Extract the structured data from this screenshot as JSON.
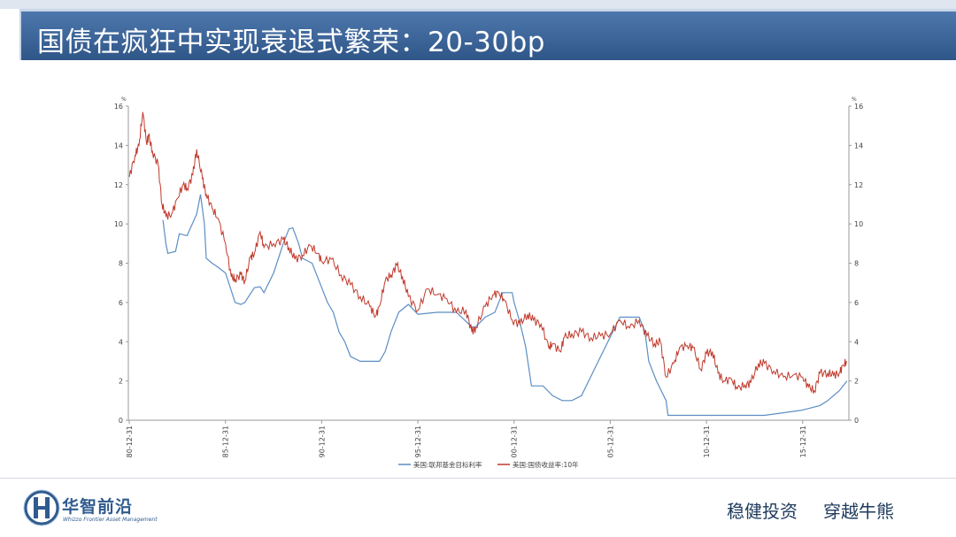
{
  "header": {
    "title": "国债在疯狂中实现衰退式繁荣：20-30bp"
  },
  "brand": {
    "name": "华智前沿",
    "subtitle": "Whizzo Frontier Asset Management",
    "logo_icon": "h-circle-logo-icon",
    "color": "#2f5b8f"
  },
  "footer": {
    "slogan_1": "稳健投资",
    "slogan_2": "穿越牛熊"
  },
  "chart_data": {
    "type": "line",
    "title": "",
    "xlabel": "",
    "ylabel": "",
    "unit_left": "%",
    "unit_right": "%",
    "ylim": [
      0,
      16
    ],
    "xlim": [
      1980.95,
      2018.4
    ],
    "y_ticks": [
      0,
      2,
      4,
      6,
      8,
      10,
      12,
      14,
      16
    ],
    "x_ticks": [
      {
        "label": "80-12-31",
        "x": 1980.997
      },
      {
        "label": "85-12-31",
        "x": 1985.997
      },
      {
        "label": "90-12-31",
        "x": 1990.997
      },
      {
        "label": "95-12-31",
        "x": 1995.997
      },
      {
        "label": "00-12-31",
        "x": 2000.997
      },
      {
        "label": "05-12-31",
        "x": 2005.997
      },
      {
        "label": "10-12-31",
        "x": 2010.997
      },
      {
        "label": "15-12-31",
        "x": 2015.997
      }
    ],
    "grid": false,
    "legend_position": "bottom",
    "series": [
      {
        "name": "美国:联邦基金目标利率",
        "color": "#5a8ec4",
        "x": [
          1982.75,
          1982.9,
          1983.0,
          1983.4,
          1983.6,
          1984.0,
          1984.5,
          1984.7,
          1984.9,
          1985.0,
          1985.3,
          1985.6,
          1986.0,
          1986.5,
          1986.8,
          1987.0,
          1987.5,
          1987.8,
          1988.0,
          1988.5,
          1989.0,
          1989.3,
          1989.5,
          1989.8,
          1990.0,
          1990.5,
          1990.9,
          1991.3,
          1991.6,
          1991.9,
          1992.2,
          1992.5,
          1993.0,
          1993.5,
          1994.0,
          1994.3,
          1994.6,
          1995.0,
          1995.5,
          1996.0,
          1997.0,
          1998.0,
          1998.8,
          1999.0,
          1999.5,
          2000.0,
          2000.4,
          2000.9,
          2001.0,
          2001.3,
          2001.6,
          2001.9,
          2002.5,
          2003.0,
          2003.5,
          2004.0,
          2004.5,
          2005.0,
          2005.5,
          2006.0,
          2006.5,
          2007.0,
          2007.5,
          2007.8,
          2008.0,
          2008.4,
          2008.9,
          2009.0,
          2010.0,
          2012.0,
          2014.0,
          2015.9,
          2016.9,
          2017.3,
          2017.9,
          2018.3
        ],
        "y": [
          10.2,
          9.0,
          8.5,
          8.6,
          9.5,
          9.4,
          10.5,
          11.5,
          10.0,
          8.25,
          8.0,
          7.8,
          7.5,
          6.0,
          5.9,
          6.0,
          6.75,
          6.8,
          6.5,
          7.5,
          9.0,
          9.75,
          9.8,
          9.0,
          8.25,
          8.0,
          7.0,
          6.0,
          5.5,
          4.5,
          4.0,
          3.25,
          3.0,
          3.0,
          3.0,
          3.5,
          4.5,
          5.5,
          5.9,
          5.4,
          5.5,
          5.5,
          4.75,
          4.75,
          5.25,
          5.5,
          6.5,
          6.5,
          6.0,
          5.0,
          3.75,
          1.75,
          1.75,
          1.25,
          1.0,
          1.0,
          1.25,
          2.25,
          3.25,
          4.25,
          5.25,
          5.25,
          5.25,
          4.5,
          3.0,
          2.0,
          1.0,
          0.25,
          0.25,
          0.25,
          0.25,
          0.5,
          0.75,
          1.0,
          1.5,
          2.0
        ]
      },
      {
        "name": "美国:国债收益率:10年",
        "color": "#c0392b",
        "x": [
          1981.0,
          1981.3,
          1981.5,
          1981.7,
          1981.9,
          1982.0,
          1982.2,
          1982.5,
          1982.7,
          1982.9,
          1983.2,
          1983.5,
          1983.8,
          1984.0,
          1984.3,
          1984.5,
          1984.8,
          1985.0,
          1985.3,
          1985.6,
          1986.0,
          1986.3,
          1986.5,
          1986.8,
          1987.0,
          1987.3,
          1987.5,
          1987.8,
          1988.0,
          1988.5,
          1989.0,
          1989.3,
          1989.6,
          1990.0,
          1990.4,
          1990.8,
          1991.0,
          1991.5,
          1992.0,
          1992.5,
          1993.0,
          1993.5,
          1993.8,
          1994.0,
          1994.3,
          1994.6,
          1994.9,
          1995.2,
          1995.5,
          1996.0,
          1996.5,
          1997.0,
          1997.5,
          1998.0,
          1998.5,
          1998.8,
          1999.0,
          1999.5,
          1999.9,
          2000.2,
          2000.5,
          2000.9,
          2001.3,
          2001.7,
          2002.0,
          2002.4,
          2002.8,
          2003.0,
          2003.4,
          2003.6,
          2004.0,
          2004.5,
          2005.0,
          2005.5,
          2006.0,
          2006.5,
          2007.0,
          2007.5,
          2007.9,
          2008.3,
          2008.6,
          2008.9,
          2009.3,
          2009.6,
          2010.0,
          2010.3,
          2010.7,
          2011.0,
          2011.3,
          2011.6,
          2011.9,
          2012.3,
          2012.6,
          2013.0,
          2013.3,
          2013.7,
          2014.0,
          2014.5,
          2015.0,
          2015.5,
          2016.0,
          2016.3,
          2016.6,
          2016.9,
          2017.3,
          2017.6,
          2017.9,
          2018.1,
          2018.3
        ],
        "y": [
          12.4,
          13.5,
          14.0,
          15.7,
          14.1,
          14.5,
          13.7,
          13.0,
          11.0,
          10.4,
          10.5,
          11.3,
          12.0,
          11.8,
          12.5,
          13.8,
          12.3,
          11.5,
          10.8,
          10.3,
          9.0,
          7.3,
          7.2,
          7.4,
          7.1,
          8.3,
          8.5,
          9.6,
          8.8,
          9.0,
          9.2,
          8.8,
          8.2,
          8.4,
          8.9,
          8.5,
          8.1,
          8.2,
          7.4,
          6.9,
          6.3,
          5.8,
          5.3,
          5.8,
          7.1,
          7.4,
          7.9,
          7.3,
          6.3,
          5.6,
          6.7,
          6.4,
          6.2,
          5.5,
          5.6,
          4.5,
          4.7,
          5.8,
          6.4,
          6.5,
          6.1,
          5.1,
          4.9,
          5.4,
          5.1,
          4.9,
          3.7,
          3.9,
          3.5,
          4.2,
          4.4,
          4.5,
          4.2,
          4.3,
          4.4,
          5.1,
          4.7,
          5.1,
          4.3,
          3.9,
          4.0,
          2.2,
          2.9,
          3.7,
          3.8,
          3.7,
          2.6,
          3.4,
          3.5,
          2.4,
          2.0,
          2.1,
          1.6,
          1.8,
          1.9,
          2.9,
          2.9,
          2.5,
          2.2,
          2.3,
          2.2,
          1.7,
          1.5,
          2.4,
          2.4,
          2.3,
          2.4,
          2.8,
          3.0
        ]
      }
    ]
  }
}
